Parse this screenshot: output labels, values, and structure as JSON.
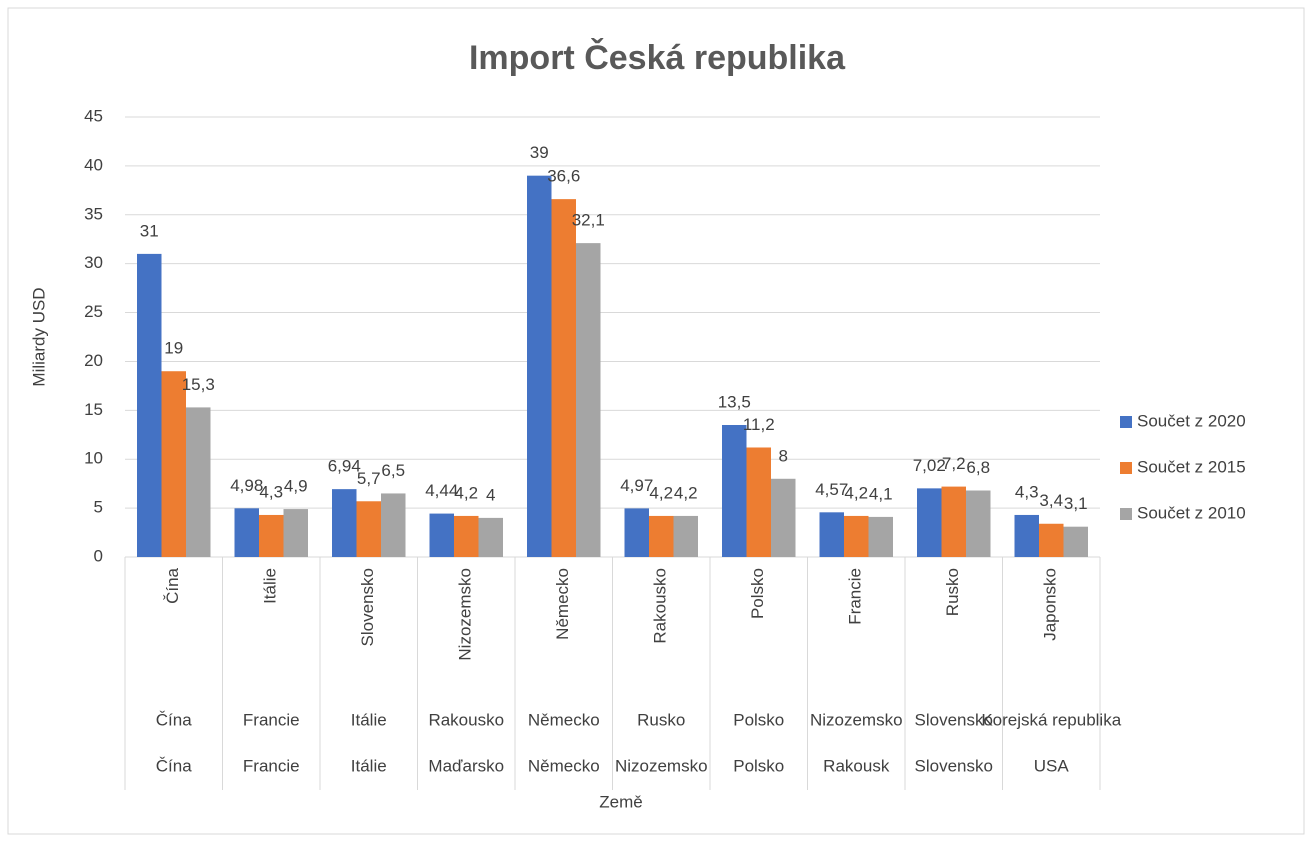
{
  "chart_data": {
    "type": "bar",
    "title": "Import Česká republika",
    "y_label": "Miliardy USD",
    "x_label": "Země",
    "categories": [
      "Čína",
      "Itálie",
      "Slovensko",
      "Nizozemsko",
      "Německo",
      "Rakousko",
      "Polsko",
      "Francie",
      "Rusko",
      "Japonsko"
    ],
    "categories_2": [
      "Čína",
      "Francie",
      "Itálie",
      "Rakousko",
      "Německo",
      "Rusko",
      "Polsko",
      "Nizozemsko",
      "Slovensko",
      "Korejská republika"
    ],
    "categories_3": [
      "Čína",
      "Francie",
      "Itálie",
      "Maďarsko",
      "Německo",
      "Nizozemsko",
      "Polsko",
      "Rakousk",
      "Slovensko",
      "USA"
    ],
    "series": [
      {
        "name": "Součet z 2020",
        "color": "#4472c4",
        "values": [
          31,
          4.98,
          6.94,
          4.44,
          39,
          4.97,
          13.5,
          4.57,
          7.02,
          4.3
        ],
        "value_labels": [
          "31",
          "4,98",
          "6,94",
          "4,44",
          "39",
          "4,97",
          "13,5",
          "4,57",
          "7,02",
          "4,3"
        ]
      },
      {
        "name": "Součet z 2015",
        "color": "#ed7d31",
        "values": [
          19,
          4.3,
          5.7,
          4.2,
          36.6,
          4.2,
          11.2,
          4.2,
          7.2,
          3.4
        ],
        "value_labels": [
          "19",
          "4,3",
          "5,7",
          "4,2",
          "36,6",
          "4,2",
          "11,2",
          "4,2",
          "7,2",
          "3,4"
        ]
      },
      {
        "name": "Součet z 2010",
        "color": "#a5a5a5",
        "values": [
          15.3,
          4.9,
          6.5,
          4,
          32.1,
          4.2,
          8,
          4.1,
          6.8,
          3.1
        ],
        "value_labels": [
          "15,3",
          "4,9",
          "6,5",
          "4",
          "32,1",
          "4,2",
          "8",
          "4,1",
          "6,8",
          "3,1"
        ]
      }
    ],
    "ylim": [
      0,
      45
    ],
    "yticks": [
      0,
      5,
      10,
      15,
      20,
      25,
      30,
      35,
      40,
      45
    ],
    "grid": true,
    "legend": "right"
  }
}
